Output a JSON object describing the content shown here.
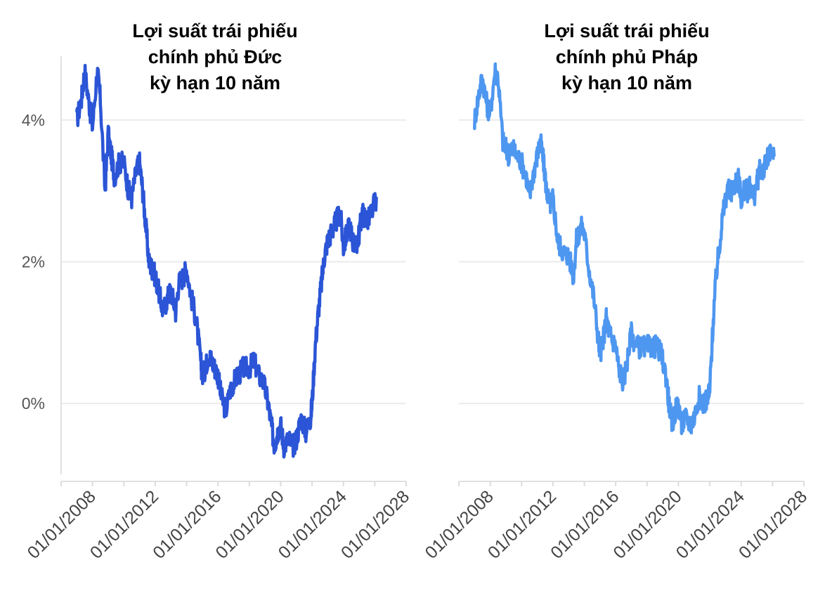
{
  "chart_data": [
    {
      "type": "line",
      "title_lines": [
        "Lợi suất trái phiếu",
        "chính phủ Đức",
        "kỳ hạn 10 năm"
      ],
      "color": "#2b55d6",
      "y_ticks": [
        "0%",
        "2%",
        "4%"
      ],
      "y_tick_values": [
        0,
        2,
        4
      ],
      "ylim": [
        -1.0,
        4.9
      ],
      "x_ticks": [
        "01/01/2008",
        "01/01/2012",
        "01/01/2016",
        "01/01/2020",
        "01/01/2024",
        "01/01/2028"
      ],
      "x_tick_values": [
        2008,
        2012,
        2016,
        2020,
        2024,
        2028
      ],
      "xlim": [
        2006.0,
        2028.0
      ],
      "grid": "horizontal",
      "series": [
        {
          "x": [
            2007.0,
            2007.3,
            2007.5,
            2007.8,
            2008.0,
            2008.3,
            2008.5,
            2008.8,
            2009.0,
            2009.2,
            2009.4,
            2009.7,
            2010.0,
            2010.3,
            2010.5,
            2010.8,
            2011.0,
            2011.2,
            2011.4,
            2011.6,
            2011.8,
            2012.0,
            2012.3,
            2012.5,
            2012.8,
            2013.0,
            2013.3,
            2013.5,
            2013.8,
            2014.0,
            2014.3,
            2014.6,
            2014.9,
            2015.0,
            2015.2,
            2015.4,
            2015.6,
            2015.8,
            2016.0,
            2016.2,
            2016.5,
            2016.8,
            2017.0,
            2017.3,
            2017.6,
            2018.0,
            2018.3,
            2018.6,
            2018.9,
            2019.2,
            2019.4,
            2019.6,
            2019.8,
            2020.0,
            2020.2,
            2020.5,
            2020.8,
            2021.0,
            2021.3,
            2021.6,
            2021.9,
            2022.0,
            2022.2,
            2022.4,
            2022.6,
            2022.8,
            2023.0,
            2023.2,
            2023.4,
            2023.6,
            2023.8,
            2024.0,
            2024.2,
            2024.4,
            2024.6,
            2024.8,
            2025.0,
            2025.2,
            2025.4,
            2025.6,
            2025.8,
            2026.1
          ],
          "y": [
            4.0,
            4.3,
            4.7,
            4.2,
            3.9,
            4.7,
            4.3,
            3.0,
            3.8,
            3.5,
            3.2,
            3.4,
            3.4,
            3.0,
            2.9,
            3.3,
            3.4,
            3.0,
            2.5,
            2.0,
            1.9,
            1.8,
            1.5,
            1.3,
            1.5,
            1.6,
            1.3,
            1.7,
            1.8,
            1.9,
            1.5,
            1.2,
            0.6,
            0.4,
            0.5,
            0.7,
            0.6,
            0.5,
            0.4,
            0.1,
            -0.1,
            0.2,
            0.3,
            0.4,
            0.5,
            0.5,
            0.6,
            0.4,
            0.3,
            0.0,
            -0.3,
            -0.6,
            -0.4,
            -0.3,
            -0.6,
            -0.5,
            -0.6,
            -0.5,
            -0.2,
            -0.4,
            -0.2,
            0.0,
            0.8,
            1.3,
            1.7,
            2.1,
            2.3,
            2.4,
            2.5,
            2.6,
            2.7,
            2.2,
            2.4,
            2.5,
            2.3,
            2.2,
            2.4,
            2.7,
            2.6,
            2.6,
            2.7,
            2.9
          ]
        }
      ]
    },
    {
      "type": "line",
      "title_lines": [
        "Lợi suất trái phiếu",
        "chính phủ Pháp",
        "kỳ hạn 10 năm"
      ],
      "color": "#4e97f0",
      "x_ticks": [
        "01/01/2008",
        "01/01/2012",
        "01/01/2016",
        "01/01/2020",
        "01/01/2024",
        "01/01/2028"
      ],
      "x_tick_values": [
        2008,
        2012,
        2016,
        2020,
        2024,
        2028
      ],
      "xlim": [
        2006.0,
        2028.0
      ],
      "ylim": [
        -1.0,
        4.9
      ],
      "y_tick_values": [
        0,
        2,
        4
      ],
      "grid": "horizontal",
      "series": [
        {
          "x": [
            2007.0,
            2007.3,
            2007.5,
            2007.8,
            2008.0,
            2008.3,
            2008.5,
            2008.8,
            2009.0,
            2009.2,
            2009.4,
            2009.7,
            2010.0,
            2010.3,
            2010.5,
            2010.8,
            2011.0,
            2011.2,
            2011.4,
            2011.6,
            2011.8,
            2012.0,
            2012.3,
            2012.5,
            2012.8,
            2013.0,
            2013.3,
            2013.5,
            2013.8,
            2014.0,
            2014.3,
            2014.6,
            2014.9,
            2015.0,
            2015.2,
            2015.4,
            2015.6,
            2015.8,
            2016.0,
            2016.2,
            2016.5,
            2016.8,
            2017.0,
            2017.3,
            2017.6,
            2018.0,
            2018.3,
            2018.6,
            2018.9,
            2019.2,
            2019.4,
            2019.6,
            2019.8,
            2020.0,
            2020.2,
            2020.5,
            2020.8,
            2021.0,
            2021.3,
            2021.6,
            2021.9,
            2022.0,
            2022.2,
            2022.4,
            2022.6,
            2022.8,
            2023.0,
            2023.2,
            2023.4,
            2023.6,
            2023.8,
            2024.0,
            2024.2,
            2024.4,
            2024.6,
            2024.8,
            2025.0,
            2025.2,
            2025.4,
            2025.6,
            2025.8,
            2026.1
          ],
          "y": [
            4.0,
            4.4,
            4.6,
            4.2,
            4.1,
            4.7,
            4.6,
            3.7,
            3.6,
            3.5,
            3.6,
            3.5,
            3.4,
            3.2,
            2.9,
            3.3,
            3.5,
            3.7,
            3.4,
            3.0,
            2.8,
            2.9,
            2.3,
            2.2,
            2.1,
            2.1,
            1.8,
            2.3,
            2.5,
            2.4,
            1.9,
            1.5,
            0.9,
            0.7,
            0.9,
            1.2,
            1.0,
            0.9,
            0.8,
            0.5,
            0.3,
            0.7,
            1.0,
            0.8,
            0.8,
            0.8,
            0.8,
            0.8,
            0.7,
            0.4,
            0.0,
            -0.3,
            -0.1,
            0.0,
            -0.3,
            -0.2,
            -0.3,
            -0.2,
            0.1,
            0.0,
            0.1,
            0.2,
            1.1,
            1.8,
            2.2,
            2.6,
            2.9,
            3.0,
            3.0,
            3.1,
            3.2,
            2.9,
            3.0,
            3.0,
            3.1,
            2.9,
            3.1,
            3.3,
            3.3,
            3.4,
            3.5,
            3.5
          ]
        }
      ]
    }
  ]
}
